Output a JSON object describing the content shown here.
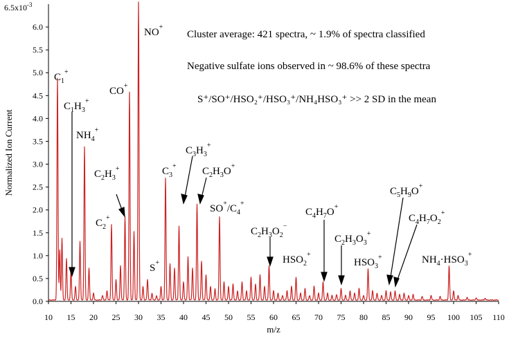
{
  "chart_data": {
    "type": "line",
    "xlabel": "m/z",
    "ylabel": "Normalized Ion Current",
    "xlim": [
      10,
      110
    ],
    "ylim": [
      0,
      0.0065
    ],
    "y_top_label": "6.5x10",
    "y_top_exponent": "-3",
    "line_color": "#cc2222",
    "xticks": [
      10,
      15,
      20,
      25,
      30,
      35,
      40,
      45,
      50,
      55,
      60,
      65,
      70,
      75,
      80,
      85,
      90,
      95,
      100,
      105,
      110
    ],
    "yticks": [
      "0.0",
      "0.5",
      "1.0",
      "1.5",
      "2.0",
      "2.5",
      "3.0",
      "3.5",
      "4.0",
      "4.5",
      "5.0",
      "5.5",
      "6.0"
    ],
    "annotations": [
      "Cluster average: 421 spectra, ~ 1.9% of spectra classified",
      "Negative sulfate ions observed in ~ 98.6% of these spectra",
      "S⁺/SO⁺/HSO₂⁺/HSO₃⁺/NH₄HSO₃⁺ >> 2 SD in the mean"
    ],
    "ion_labels": [
      {
        "id": "c1",
        "base": "C",
        "sub": "1",
        "sup": "+"
      },
      {
        "id": "c1h3",
        "base": "C",
        "sub": "1",
        "base2": "H",
        "sub2": "3",
        "sup": "+"
      },
      {
        "id": "nh4",
        "base": "NH",
        "sub": "4",
        "sup": "+"
      },
      {
        "id": "c2",
        "base": "C",
        "sub": "2",
        "sup": "+"
      },
      {
        "id": "c2h3",
        "base": "C",
        "sub": "2",
        "base2": "H",
        "sub2": "3",
        "sup": "+"
      },
      {
        "id": "co",
        "base": "CO",
        "sup": "+"
      },
      {
        "id": "no",
        "base": "NO",
        "sup": "+"
      },
      {
        "id": "s",
        "base": "S",
        "sup": "+"
      },
      {
        "id": "c3",
        "base": "C",
        "sub": "3",
        "sup": "+"
      },
      {
        "id": "c3h3",
        "base": "C",
        "sub": "3",
        "base2": "H",
        "sub2": "3",
        "sup": "+"
      },
      {
        "id": "c2h3o",
        "base": "C",
        "sub": "2",
        "base2": "H",
        "sub2": "3",
        "base3": "O",
        "sup": "+"
      },
      {
        "id": "so_c4",
        "base": "SO",
        "sup": "+",
        "base2": "/C",
        "sub2": "4",
        "sup2": "+"
      },
      {
        "id": "c2h3o2",
        "base": "C",
        "sub": "2",
        "base2": "H",
        "sub2": "3",
        "base3": "O",
        "sub3": "2",
        "sup": "−"
      },
      {
        "id": "hso2",
        "base": "HSO",
        "sub": "2",
        "sup": "+"
      },
      {
        "id": "c4h7o",
        "base": "C",
        "sub": "4",
        "base2": "H",
        "sub2": "7",
        "base3": "O",
        "sup": "+"
      },
      {
        "id": "c2h3o3",
        "base": "C",
        "sub": "2",
        "base2": "H",
        "sub2": "3",
        "base3": "O",
        "sub3": "3",
        "sup": "+"
      },
      {
        "id": "hso3",
        "base": "HSO",
        "sub": "3",
        "sup": "+"
      },
      {
        "id": "c5h9o",
        "base": "C",
        "sub": "5",
        "base2": "H",
        "sub2": "9",
        "base3": "O",
        "sup": "+"
      },
      {
        "id": "c4h7o2",
        "base": "C",
        "sub": "4",
        "base2": "H",
        "sub2": "7",
        "base3": "O",
        "sub3": "2",
        "sup": "+"
      },
      {
        "id": "nh4hso3",
        "base": "NH",
        "sub": "4",
        "base2": "·HSO",
        "sub2": "3",
        "sup": "+"
      }
    ],
    "peaks": [
      [
        12,
        0.00485
      ],
      [
        12.5,
        0.0011
      ],
      [
        13,
        0.00135
      ],
      [
        14,
        0.0009
      ],
      [
        15,
        0.00065
      ],
      [
        16,
        0.0003
      ],
      [
        17,
        0.00128
      ],
      [
        18,
        0.00335
      ],
      [
        19,
        0.0007
      ],
      [
        20,
        0.00015
      ],
      [
        22,
        0.0001
      ],
      [
        23,
        0.0002
      ],
      [
        24,
        0.00165
      ],
      [
        25,
        0.00045
      ],
      [
        26,
        0.00075
      ],
      [
        27,
        0.00182
      ],
      [
        28,
        0.00455
      ],
      [
        29,
        0.0015
      ],
      [
        30,
        0.00652
      ],
      [
        31,
        0.0003
      ],
      [
        32,
        0.00045
      ],
      [
        33,
        0.00015
      ],
      [
        34,
        0.0001
      ],
      [
        35,
        0.0003
      ],
      [
        36,
        0.00267
      ],
      [
        37,
        0.0008
      ],
      [
        38,
        0.0007
      ],
      [
        39,
        0.00162
      ],
      [
        40,
        0.0004
      ],
      [
        41,
        0.00095
      ],
      [
        42,
        0.0007
      ],
      [
        43,
        0.0021
      ],
      [
        44,
        0.00085
      ],
      [
        45,
        0.00055
      ],
      [
        46,
        0.0003
      ],
      [
        47,
        0.00025
      ],
      [
        48,
        0.00182
      ],
      [
        49,
        0.0004
      ],
      [
        50,
        0.0003
      ],
      [
        51,
        0.00035
      ],
      [
        52,
        0.0002
      ],
      [
        53,
        0.0004
      ],
      [
        54,
        0.0002
      ],
      [
        55,
        0.0005
      ],
      [
        56,
        0.00035
      ],
      [
        57,
        0.00055
      ],
      [
        58,
        0.0003
      ],
      [
        59,
        0.00075
      ],
      [
        60,
        0.0002
      ],
      [
        61,
        0.00015
      ],
      [
        62,
        0.0001
      ],
      [
        63,
        0.0002
      ],
      [
        64,
        0.0003
      ],
      [
        65,
        0.0005
      ],
      [
        66,
        0.00015
      ],
      [
        67,
        0.00025
      ],
      [
        68,
        0.0001
      ],
      [
        69,
        0.0003
      ],
      [
        70,
        0.00015
      ],
      [
        71,
        0.0004
      ],
      [
        72,
        0.00015
      ],
      [
        73,
        0.0001
      ],
      [
        74,
        0.00012
      ],
      [
        75,
        0.00025
      ],
      [
        76,
        0.0001
      ],
      [
        77,
        0.0002
      ],
      [
        78,
        0.00015
      ],
      [
        79,
        0.00025
      ],
      [
        80,
        0.0001
      ],
      [
        81,
        0.00068
      ],
      [
        82,
        0.0002
      ],
      [
        83,
        0.00015
      ],
      [
        84,
        0.0001
      ],
      [
        85,
        0.0002
      ],
      [
        86,
        0.00018
      ],
      [
        87,
        0.0002
      ],
      [
        88,
        0.00012
      ],
      [
        89,
        0.00015
      ],
      [
        90,
        0.0001
      ],
      [
        91,
        0.00012
      ],
      [
        93,
        8e-05
      ],
      [
        95,
        0.0001
      ],
      [
        97,
        8e-05
      ],
      [
        99,
        0.00075
      ],
      [
        100,
        0.0002
      ],
      [
        101,
        0.0001
      ],
      [
        103,
        6e-05
      ],
      [
        105,
        5e-05
      ],
      [
        107,
        4e-05
      ]
    ]
  }
}
